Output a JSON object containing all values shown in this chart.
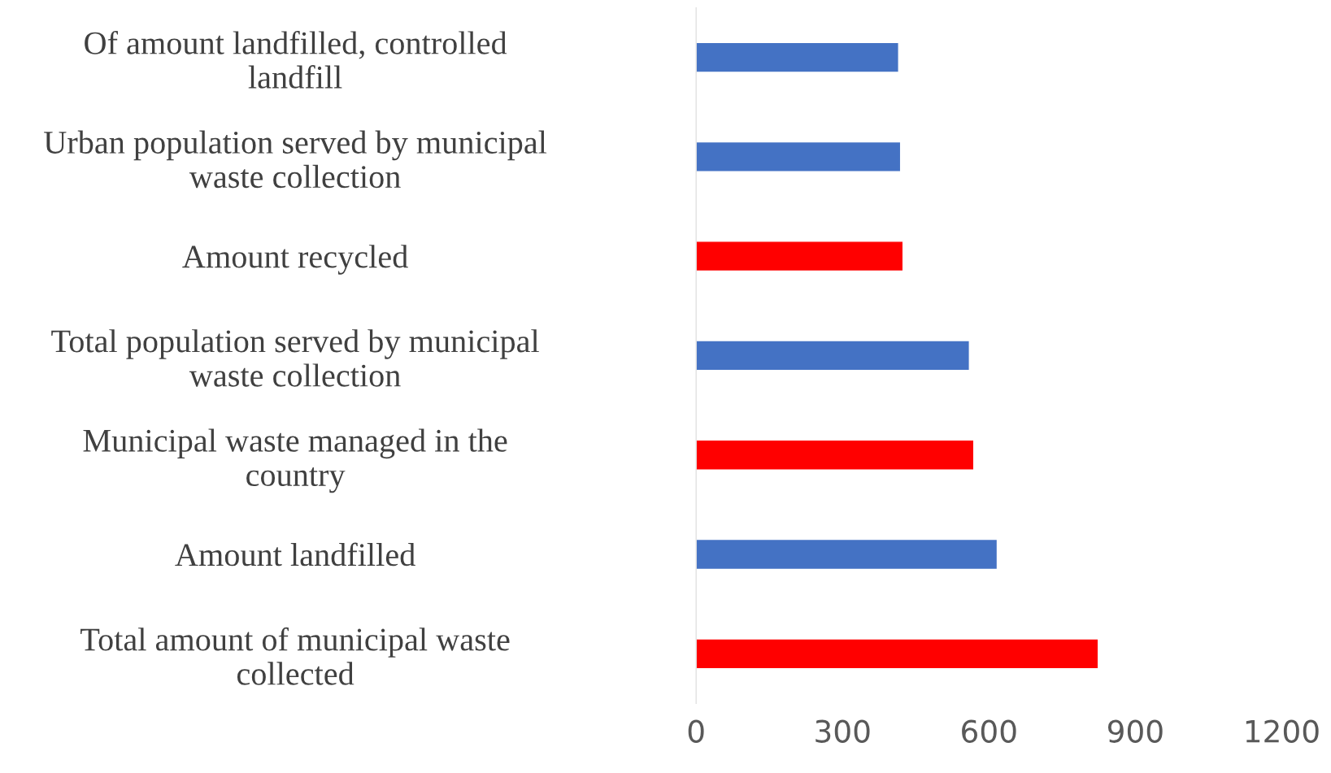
{
  "chart_data": {
    "type": "bar",
    "orientation": "horizontal",
    "categories": [
      "Of amount landfilled, controlled\nlandfill",
      "Urban population served by municipal\nwaste collection",
      "Amount recycled",
      "Total population served by municipal\nwaste collection",
      "Municipal waste managed in the\ncountry",
      "Amount landfilled",
      "Total amount of municipal waste\ncollected"
    ],
    "values": [
      415,
      419,
      424,
      560,
      569,
      617,
      824
    ],
    "colors": [
      "#4472c4",
      "#4472c4",
      "#ff0000",
      "#4472c4",
      "#ff0000",
      "#4472c4",
      "#ff0000"
    ],
    "xlim": [
      0,
      1200
    ],
    "xticks": [
      0,
      300,
      600,
      900,
      1200
    ],
    "grid": false,
    "legend": false
  }
}
